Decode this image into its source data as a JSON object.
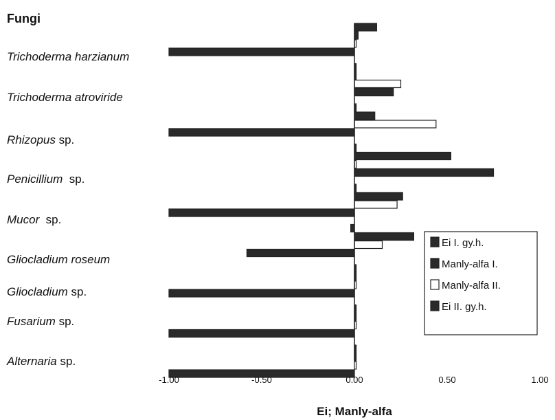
{
  "chart_data": {
    "type": "bar",
    "orientation": "horizontal",
    "title": "Fungi",
    "xlabel": "Ei; Manly-alfa",
    "ylabel": "",
    "xlim": [
      -1.0,
      1.0
    ],
    "xticks": [
      "-1.00",
      "-0.50",
      "0.00",
      "0.50",
      "1.00"
    ],
    "categories": [
      {
        "name": "Trichoderma harzianum",
        "suffix": ""
      },
      {
        "name": "Trichoderma atroviride",
        "suffix": ""
      },
      {
        "name": "Rhizopus",
        "suffix": " sp."
      },
      {
        "name": "Penicillium",
        "suffix": "  sp."
      },
      {
        "name": "Mucor",
        "suffix": "  sp."
      },
      {
        "name": "Gliocladium roseum",
        "suffix": ""
      },
      {
        "name": "Gliocladium",
        "suffix": " sp."
      },
      {
        "name": "Fusarium",
        "suffix": " sp."
      },
      {
        "name": "Alternaria",
        "suffix": " sp."
      }
    ],
    "series": [
      {
        "name": "Ei I. gy.h.",
        "fill": "#2a2a2a",
        "values": [
          0.12,
          0.0,
          0.0,
          0.0,
          0.0,
          -0.02,
          0.0,
          0.0,
          0.0
        ]
      },
      {
        "name": "Manly-alfa I.",
        "fill": "#2a2a2a",
        "values": [
          0.02,
          0.0,
          0.11,
          0.52,
          0.26,
          0.32,
          0.0,
          0.0,
          0.0
        ]
      },
      {
        "name": "Manly-alfa II.",
        "fill": "#ffffff",
        "values": [
          0.0,
          0.25,
          0.44,
          0.0,
          0.23,
          0.15,
          0.0,
          0.0,
          0.0
        ]
      },
      {
        "name": "Ei II. gy.h.",
        "fill": "#2a2a2a",
        "values": [
          -1.0,
          0.21,
          -1.0,
          0.75,
          -1.0,
          -0.58,
          -1.0,
          -1.0,
          -1.0
        ]
      }
    ],
    "legend": {
      "position": "right",
      "items": [
        "Ei I. gy.h.",
        "Manly-alfa I.",
        "Manly-alfa II.",
        "Ei II. gy.h."
      ]
    },
    "grid": false
  }
}
